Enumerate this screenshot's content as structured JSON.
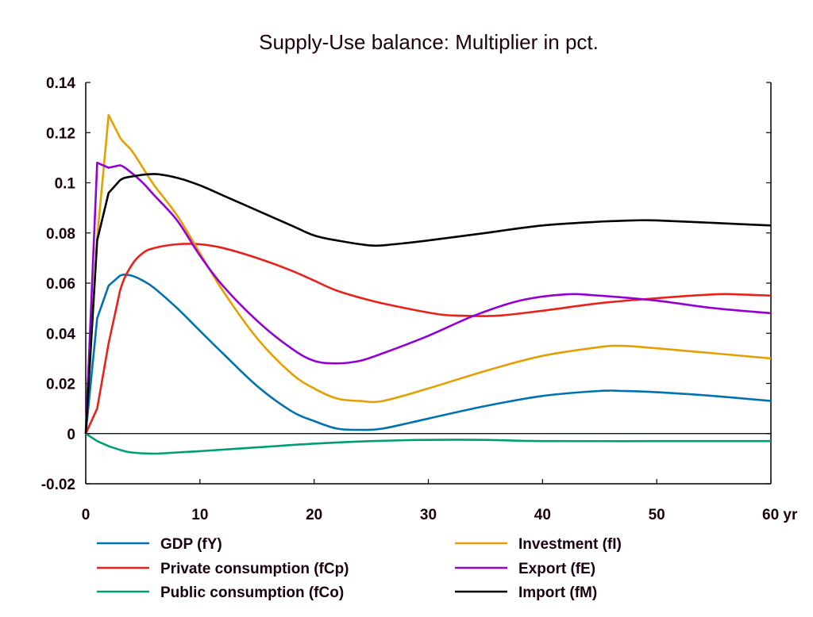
{
  "chart_data": {
    "type": "line",
    "title": "Supply-Use balance: Multiplier in pct.",
    "xlabel": "",
    "ylabel": "",
    "x_unit_label": "yr",
    "xlim": [
      0,
      60
    ],
    "ylim": [
      -0.02,
      0.14
    ],
    "xticks": [
      0,
      10,
      20,
      30,
      40,
      50,
      60
    ],
    "xtick_labels": [
      "0",
      "10",
      "20",
      "30",
      "40",
      "50",
      "60 yr"
    ],
    "yticks": [
      -0.02,
      0,
      0.02,
      0.04,
      0.06,
      0.08,
      0.1,
      0.12,
      0.14
    ],
    "ytick_labels": [
      "-0.02",
      "0",
      "0.02",
      "0.04",
      "0.06",
      "0.08",
      "0.1",
      "0.12",
      "0.14"
    ],
    "grid": false,
    "zero_line": true,
    "legend_position": "bottom",
    "series": [
      {
        "name": "GDP (fY)",
        "color": "#0072b2",
        "x": [
          0,
          1,
          2,
          3,
          4,
          5,
          6,
          8,
          10,
          12,
          15,
          18,
          20,
          22,
          24,
          26,
          30,
          35,
          40,
          45,
          47,
          50,
          55,
          60
        ],
        "y": [
          0,
          0.046,
          0.059,
          0.063,
          0.063,
          0.061,
          0.058,
          0.05,
          0.041,
          0.032,
          0.019,
          0.009,
          0.005,
          0.002,
          0.0015,
          0.002,
          0.006,
          0.011,
          0.015,
          0.017,
          0.017,
          0.0165,
          0.015,
          0.013
        ]
      },
      {
        "name": "Private consumption (fCp)",
        "color": "#e8221a",
        "x": [
          0,
          1,
          2,
          3,
          4,
          5,
          6,
          8,
          10,
          12,
          15,
          18,
          20,
          22,
          25,
          28,
          31,
          33,
          36,
          40,
          45,
          50,
          55,
          57,
          60
        ],
        "y": [
          0,
          0.01,
          0.036,
          0.057,
          0.067,
          0.072,
          0.074,
          0.0755,
          0.0755,
          0.074,
          0.07,
          0.065,
          0.061,
          0.057,
          0.053,
          0.05,
          0.0475,
          0.047,
          0.047,
          0.049,
          0.052,
          0.054,
          0.0555,
          0.0555,
          0.055
        ]
      },
      {
        "name": "Public consumption (fCo)",
        "color": "#009e73",
        "x": [
          0,
          1,
          2,
          3,
          4,
          6,
          8,
          10,
          15,
          20,
          25,
          30,
          35,
          40,
          50,
          60
        ],
        "y": [
          0,
          -0.003,
          -0.005,
          -0.0065,
          -0.0075,
          -0.008,
          -0.0075,
          -0.007,
          -0.0055,
          -0.004,
          -0.003,
          -0.0025,
          -0.0025,
          -0.003,
          -0.003,
          -0.003
        ]
      },
      {
        "name": "Investment (fI)",
        "color": "#e69f00",
        "x": [
          0,
          1,
          2,
          3,
          4,
          5,
          6,
          8,
          10,
          12,
          15,
          18,
          20,
          22,
          24,
          26,
          30,
          35,
          40,
          45,
          47,
          50,
          55,
          60
        ],
        "y": [
          0,
          0.078,
          0.127,
          0.118,
          0.113,
          0.106,
          0.099,
          0.087,
          0.072,
          0.057,
          0.038,
          0.024,
          0.018,
          0.014,
          0.013,
          0.013,
          0.018,
          0.025,
          0.031,
          0.0345,
          0.035,
          0.034,
          0.032,
          0.03
        ]
      },
      {
        "name": "Export (fE)",
        "color": "#9400d3",
        "x": [
          0,
          1,
          2,
          3,
          4,
          5,
          6,
          8,
          10,
          12,
          15,
          18,
          20,
          22,
          24,
          26,
          30,
          34,
          38,
          42,
          45,
          50,
          55,
          60
        ],
        "y": [
          0,
          0.108,
          0.106,
          0.107,
          0.104,
          0.1,
          0.095,
          0.085,
          0.071,
          0.059,
          0.045,
          0.034,
          0.029,
          0.028,
          0.029,
          0.032,
          0.039,
          0.047,
          0.053,
          0.0555,
          0.055,
          0.053,
          0.05,
          0.048
        ]
      },
      {
        "name": "Import (fM)",
        "color": "#000000",
        "x": [
          0,
          1,
          2,
          3,
          4,
          6,
          8,
          10,
          12,
          15,
          18,
          20,
          22,
          25,
          27,
          30,
          35,
          40,
          45,
          48,
          50,
          55,
          60
        ],
        "y": [
          0,
          0.077,
          0.096,
          0.101,
          0.1025,
          0.1035,
          0.102,
          0.099,
          0.095,
          0.089,
          0.083,
          0.079,
          0.077,
          0.075,
          0.0755,
          0.077,
          0.08,
          0.083,
          0.0845,
          0.085,
          0.085,
          0.084,
          0.083
        ]
      }
    ]
  }
}
